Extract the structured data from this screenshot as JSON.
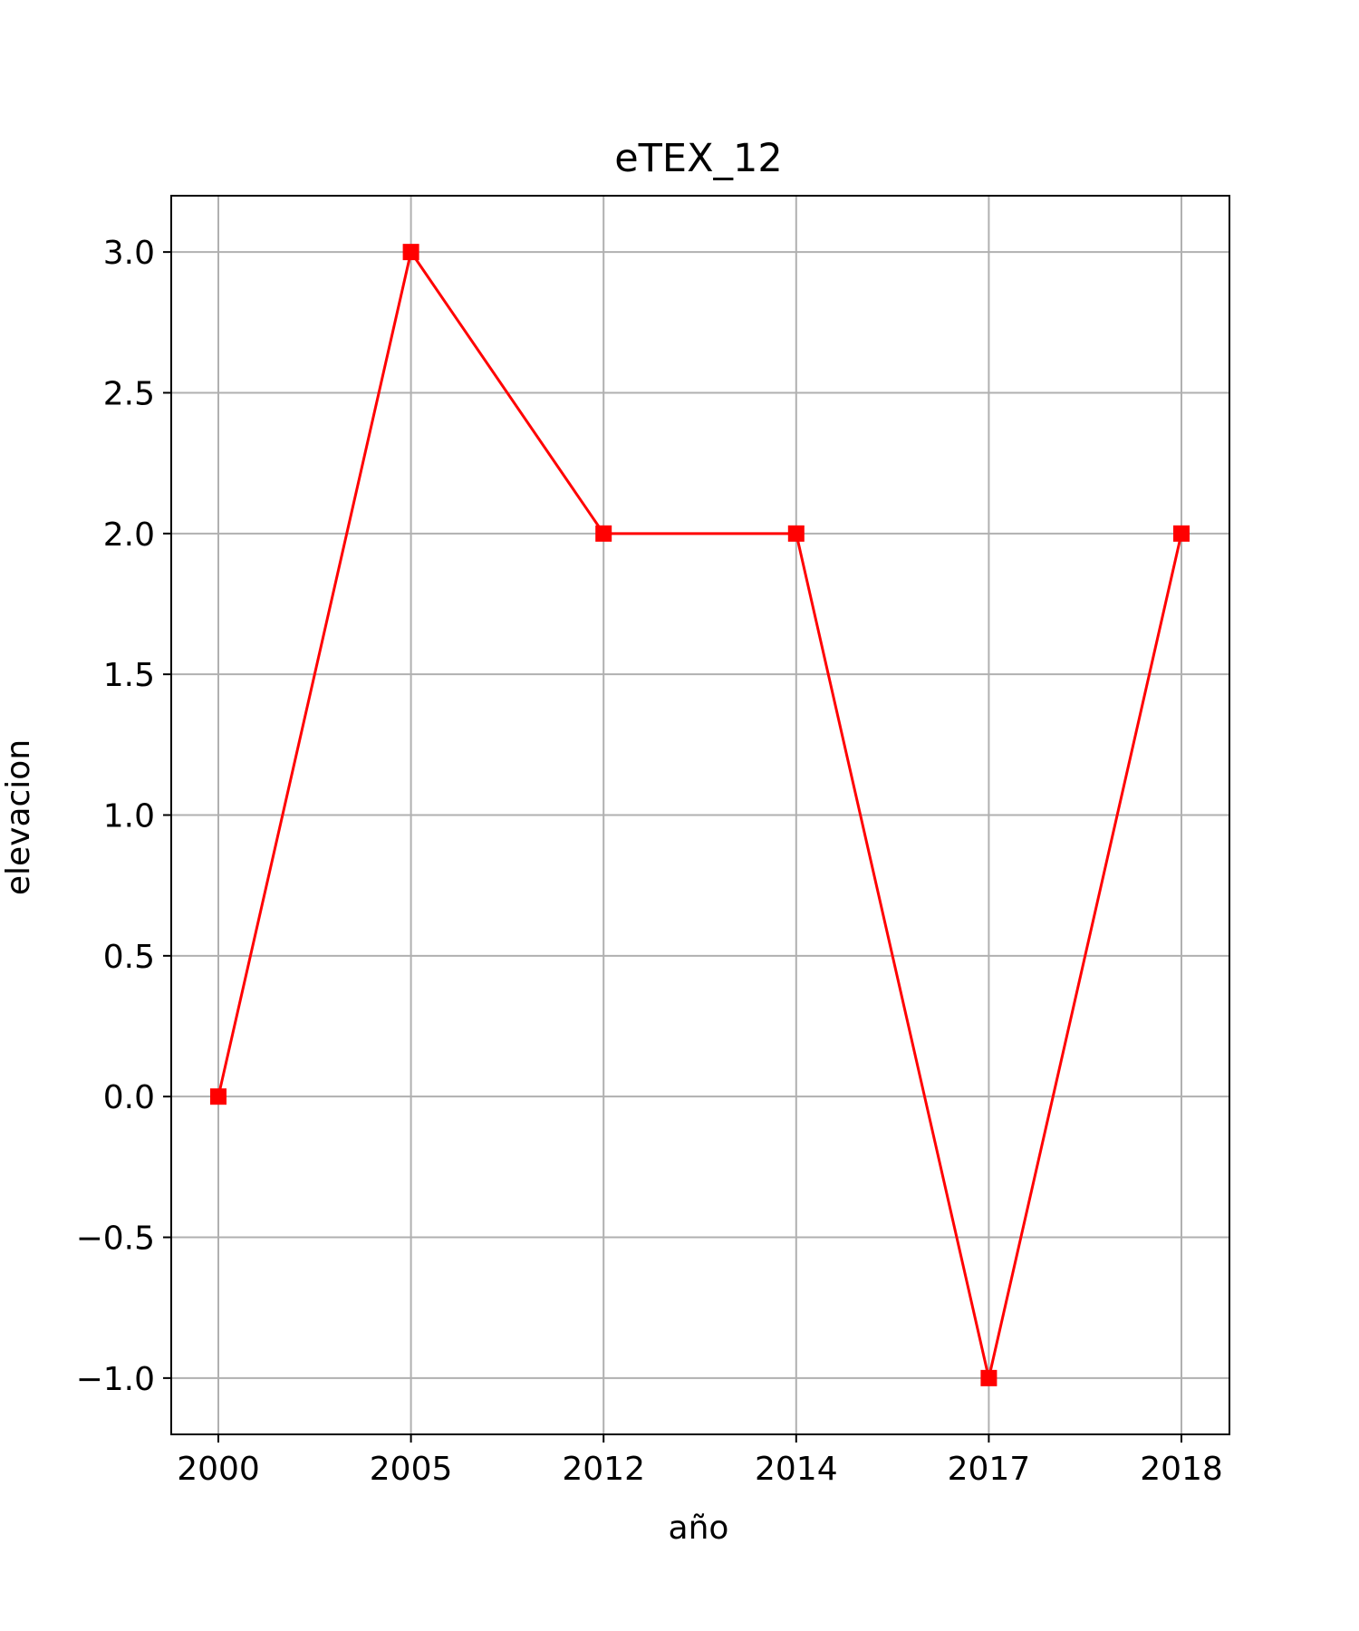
{
  "chart_data": {
    "type": "line",
    "title": "eTEX_12",
    "xlabel": "año",
    "ylabel": "elevacion",
    "categories": [
      "2000",
      "2005",
      "2012",
      "2014",
      "2017",
      "2018"
    ],
    "series": [
      {
        "values": [
          0,
          3,
          2,
          2,
          -1,
          2
        ],
        "color": "#ff0000",
        "marker": "square"
      }
    ],
    "ylim": [
      -1.2,
      3.2
    ],
    "yticks": [
      -1.0,
      -0.5,
      0.0,
      0.5,
      1.0,
      1.5,
      2.0,
      2.5,
      3.0
    ],
    "ytick_labels": [
      "−1.0",
      "−0.5",
      "0.0",
      "0.5",
      "1.0",
      "1.5",
      "2.0",
      "2.5",
      "3.0"
    ],
    "grid": true,
    "grid_color": "#b0b0b0",
    "axis_color": "#000000"
  }
}
